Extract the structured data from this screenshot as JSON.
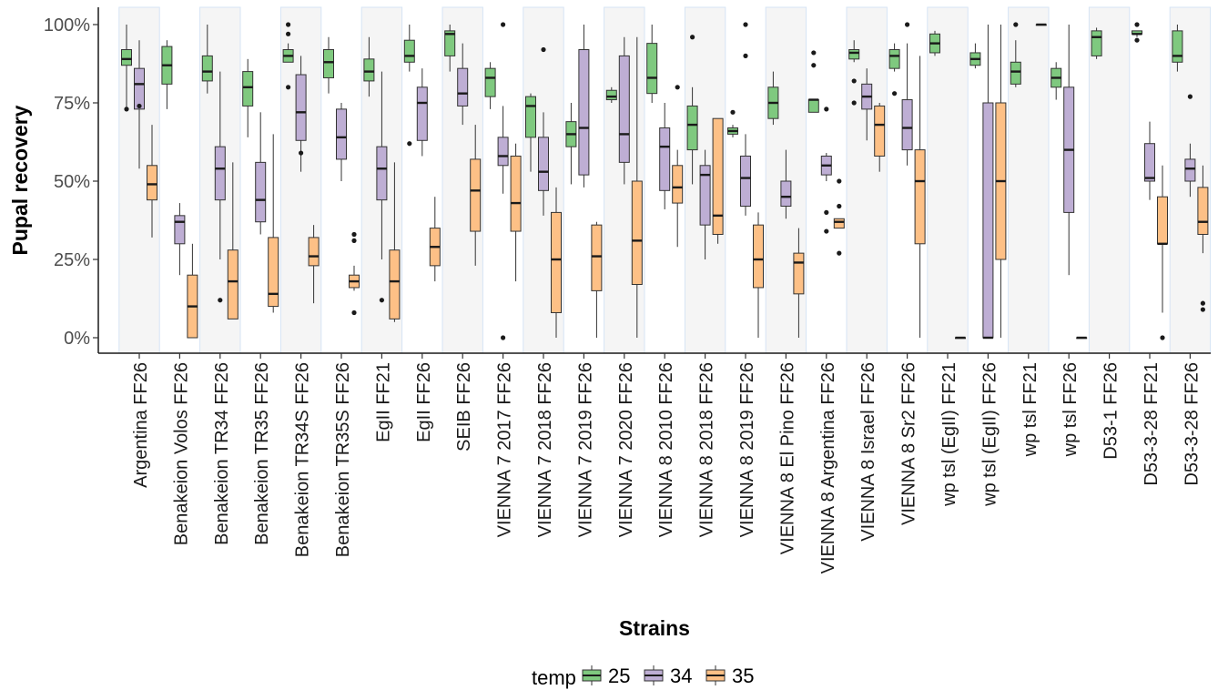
{
  "chart_data": {
    "type": "boxplot",
    "xlabel": "Strains",
    "ylabel": "Pupal recovery",
    "ylim": [
      0,
      1
    ],
    "y_ticks": [
      "0%",
      "25%",
      "50%",
      "75%",
      "100%"
    ],
    "grid": false,
    "legend": {
      "title": "temp",
      "placement": "bottom",
      "entries": [
        "25",
        "34",
        "35"
      ]
    },
    "colors": {
      "25": "#7fc97f",
      "34": "#beaed4",
      "35": "#fdc086",
      "stripe": "#f5f5f5",
      "stripe_border": "#d6e4f5"
    },
    "categories": [
      {
        "label": "Argentina FF26",
        "boxes": {
          "25": {
            "whislo": 0.73,
            "q1": 0.87,
            "med": 0.89,
            "q3": 0.92,
            "whishi": 1.0,
            "fliers": [
              0.73
            ]
          },
          "34": {
            "whislo": 0.54,
            "q1": 0.73,
            "med": 0.81,
            "q3": 0.86,
            "whishi": 0.95,
            "fliers": [
              0.74
            ]
          },
          "35": {
            "whislo": 0.32,
            "q1": 0.44,
            "med": 0.49,
            "q3": 0.55,
            "whishi": 0.68,
            "fliers": []
          }
        }
      },
      {
        "label": "Benakeion Volos FF26",
        "boxes": {
          "25": {
            "whislo": 0.73,
            "q1": 0.81,
            "med": 0.87,
            "q3": 0.93,
            "whishi": 0.95,
            "fliers": []
          },
          "34": {
            "whislo": 0.2,
            "q1": 0.3,
            "med": 0.37,
            "q3": 0.39,
            "whishi": 0.43,
            "fliers": []
          },
          "35": {
            "whislo": 0.0,
            "q1": 0.0,
            "med": 0.1,
            "q3": 0.2,
            "whishi": 0.3,
            "fliers": []
          }
        }
      },
      {
        "label": "Benakeion TR34 FF26",
        "boxes": {
          "25": {
            "whislo": 0.78,
            "q1": 0.82,
            "med": 0.85,
            "q3": 0.9,
            "whishi": 1.0,
            "fliers": []
          },
          "34": {
            "whislo": 0.25,
            "q1": 0.44,
            "med": 0.54,
            "q3": 0.61,
            "whishi": 0.85,
            "fliers": [
              0.12
            ]
          },
          "35": {
            "whislo": 0.06,
            "q1": 0.06,
            "med": 0.18,
            "q3": 0.28,
            "whishi": 0.56,
            "fliers": []
          }
        }
      },
      {
        "label": "Benakeion TR35 FF26",
        "boxes": {
          "25": {
            "whislo": 0.64,
            "q1": 0.74,
            "med": 0.8,
            "q3": 0.85,
            "whishi": 0.89,
            "fliers": []
          },
          "34": {
            "whislo": 0.33,
            "q1": 0.37,
            "med": 0.44,
            "q3": 0.56,
            "whishi": 0.72,
            "fliers": []
          },
          "35": {
            "whislo": 0.08,
            "q1": 0.1,
            "med": 0.14,
            "q3": 0.32,
            "whishi": 0.65,
            "fliers": []
          }
        }
      },
      {
        "label": "Benakeion TR34S FF26",
        "boxes": {
          "25": {
            "whislo": 0.88,
            "q1": 0.88,
            "med": 0.9,
            "q3": 0.92,
            "whishi": 0.94,
            "fliers": [
              0.8,
              0.97,
              1.0
            ]
          },
          "34": {
            "whislo": 0.53,
            "q1": 0.63,
            "med": 0.72,
            "q3": 0.84,
            "whishi": 0.9,
            "fliers": [
              0.59
            ]
          },
          "35": {
            "whislo": 0.11,
            "q1": 0.23,
            "med": 0.26,
            "q3": 0.32,
            "whishi": 0.36,
            "fliers": []
          }
        }
      },
      {
        "label": "Benakeion TR35S FF26",
        "boxes": {
          "25": {
            "whislo": 0.78,
            "q1": 0.83,
            "med": 0.88,
            "q3": 0.92,
            "whishi": 0.96,
            "fliers": []
          },
          "34": {
            "whislo": 0.5,
            "q1": 0.57,
            "med": 0.64,
            "q3": 0.73,
            "whishi": 0.75,
            "fliers": []
          },
          "35": {
            "whislo": 0.15,
            "q1": 0.16,
            "med": 0.18,
            "q3": 0.2,
            "whishi": 0.23,
            "fliers": [
              0.08,
              0.31,
              0.33
            ]
          }
        }
      },
      {
        "label": "EgII FF21",
        "boxes": {
          "25": {
            "whislo": 0.77,
            "q1": 0.82,
            "med": 0.85,
            "q3": 0.89,
            "whishi": 0.96,
            "fliers": []
          },
          "34": {
            "whislo": 0.25,
            "q1": 0.44,
            "med": 0.54,
            "q3": 0.61,
            "whishi": 0.85,
            "fliers": [
              0.12
            ]
          },
          "35": {
            "whislo": 0.05,
            "q1": 0.06,
            "med": 0.18,
            "q3": 0.28,
            "whishi": 0.56,
            "fliers": []
          }
        }
      },
      {
        "label": "EgII FF26",
        "boxes": {
          "25": {
            "whislo": 0.85,
            "q1": 0.88,
            "med": 0.9,
            "q3": 0.95,
            "whishi": 1.0,
            "fliers": [
              0.62
            ]
          },
          "34": {
            "whislo": 0.58,
            "q1": 0.63,
            "med": 0.75,
            "q3": 0.8,
            "whishi": 0.86,
            "fliers": []
          },
          "35": {
            "whislo": 0.18,
            "q1": 0.23,
            "med": 0.29,
            "q3": 0.35,
            "whishi": 0.45,
            "fliers": []
          }
        }
      },
      {
        "label": "SEIB FF26",
        "boxes": {
          "25": {
            "whislo": 0.85,
            "q1": 0.9,
            "med": 0.97,
            "q3": 0.98,
            "whishi": 1.0,
            "fliers": []
          },
          "34": {
            "whislo": 0.68,
            "q1": 0.74,
            "med": 0.78,
            "q3": 0.86,
            "whishi": 0.94,
            "fliers": []
          },
          "35": {
            "whislo": 0.23,
            "q1": 0.34,
            "med": 0.47,
            "q3": 0.57,
            "whishi": 0.68,
            "fliers": []
          }
        }
      },
      {
        "label": "VIENNA 7 2017 FF26",
        "boxes": {
          "25": {
            "whislo": 0.73,
            "q1": 0.77,
            "med": 0.83,
            "q3": 0.86,
            "whishi": 0.88,
            "fliers": []
          },
          "34": {
            "whislo": 0.46,
            "q1": 0.55,
            "med": 0.58,
            "q3": 0.64,
            "whishi": 0.74,
            "fliers": [
              0.0,
              1.0
            ]
          },
          "35": {
            "whislo": 0.18,
            "q1": 0.34,
            "med": 0.43,
            "q3": 0.58,
            "whishi": 0.62,
            "fliers": []
          }
        }
      },
      {
        "label": "VIENNA 7 2018 FF26",
        "boxes": {
          "25": {
            "whislo": 0.53,
            "q1": 0.64,
            "med": 0.74,
            "q3": 0.77,
            "whishi": 0.78,
            "fliers": []
          },
          "34": {
            "whislo": 0.39,
            "q1": 0.47,
            "med": 0.53,
            "q3": 0.64,
            "whishi": 0.72,
            "fliers": [
              0.92
            ]
          },
          "35": {
            "whislo": 0.0,
            "q1": 0.08,
            "med": 0.25,
            "q3": 0.4,
            "whishi": 0.48,
            "fliers": []
          }
        }
      },
      {
        "label": "VIENNA 7 2019 FF26",
        "boxes": {
          "25": {
            "whislo": 0.49,
            "q1": 0.61,
            "med": 0.65,
            "q3": 0.69,
            "whishi": 0.75,
            "fliers": []
          },
          "34": {
            "whislo": 0.48,
            "q1": 0.52,
            "med": 0.67,
            "q3": 0.92,
            "whishi": 1.0,
            "fliers": []
          },
          "35": {
            "whislo": 0.0,
            "q1": 0.15,
            "med": 0.26,
            "q3": 0.36,
            "whishi": 0.37,
            "fliers": []
          }
        }
      },
      {
        "label": "VIENNA 7 2020 FF26",
        "boxes": {
          "25": {
            "whislo": 0.75,
            "q1": 0.76,
            "med": 0.77,
            "q3": 0.79,
            "whishi": 0.8,
            "fliers": []
          },
          "34": {
            "whislo": 0.49,
            "q1": 0.56,
            "med": 0.65,
            "q3": 0.9,
            "whishi": 0.96,
            "fliers": []
          },
          "35": {
            "whislo": 0.0,
            "q1": 0.17,
            "med": 0.31,
            "q3": 0.5,
            "whishi": 0.96,
            "fliers": []
          }
        }
      },
      {
        "label": "VIENNA 8 2010 FF26",
        "boxes": {
          "25": {
            "whislo": 0.75,
            "q1": 0.78,
            "med": 0.83,
            "q3": 0.94,
            "whishi": 1.0,
            "fliers": []
          },
          "34": {
            "whislo": 0.41,
            "q1": 0.47,
            "med": 0.61,
            "q3": 0.67,
            "whishi": 0.75,
            "fliers": []
          },
          "35": {
            "whislo": 0.29,
            "q1": 0.43,
            "med": 0.48,
            "q3": 0.55,
            "whishi": 0.6,
            "fliers": [
              0.8
            ]
          }
        }
      },
      {
        "label": "VIENNA 8 2018 FF26",
        "boxes": {
          "25": {
            "whislo": 0.49,
            "q1": 0.6,
            "med": 0.68,
            "q3": 0.74,
            "whishi": 0.8,
            "fliers": [
              0.96
            ]
          },
          "34": {
            "whislo": 0.25,
            "q1": 0.36,
            "med": 0.52,
            "q3": 0.55,
            "whishi": 0.6,
            "fliers": []
          },
          "35": {
            "whislo": 0.3,
            "q1": 0.33,
            "med": 0.39,
            "q3": 0.7,
            "whishi": 0.7,
            "fliers": []
          }
        }
      },
      {
        "label": "VIENNA 8 2019 FF26",
        "boxes": {
          "25": {
            "whislo": 0.64,
            "q1": 0.65,
            "med": 0.66,
            "q3": 0.67,
            "whishi": 0.68,
            "fliers": [
              0.72
            ]
          },
          "34": {
            "whislo": 0.39,
            "q1": 0.42,
            "med": 0.51,
            "q3": 0.58,
            "whishi": 0.65,
            "fliers": [
              0.9,
              1.0
            ]
          },
          "35": {
            "whislo": 0.0,
            "q1": 0.16,
            "med": 0.25,
            "q3": 0.36,
            "whishi": 0.4,
            "fliers": []
          }
        }
      },
      {
        "label": "VIENNA 8 El Pino FF26",
        "boxes": {
          "25": {
            "whislo": 0.68,
            "q1": 0.7,
            "med": 0.75,
            "q3": 0.8,
            "whishi": 0.85,
            "fliers": []
          },
          "34": {
            "whislo": 0.38,
            "q1": 0.42,
            "med": 0.45,
            "q3": 0.5,
            "whishi": 0.6,
            "fliers": []
          },
          "35": {
            "whislo": 0.0,
            "q1": 0.14,
            "med": 0.24,
            "q3": 0.27,
            "whishi": 0.35,
            "fliers": []
          }
        }
      },
      {
        "label": "VIENNA 8 Argentina FF26",
        "boxes": {
          "25": {
            "whislo": 0.72,
            "q1": 0.72,
            "med": 0.76,
            "q3": 0.76,
            "whishi": 0.76,
            "fliers": [
              0.87,
              0.91
            ]
          },
          "34": {
            "whislo": 0.5,
            "q1": 0.52,
            "med": 0.55,
            "q3": 0.58,
            "whishi": 0.59,
            "fliers": [
              0.73,
              0.34,
              0.4
            ]
          },
          "35": {
            "whislo": 0.35,
            "q1": 0.35,
            "med": 0.37,
            "q3": 0.38,
            "whishi": 0.38,
            "fliers": [
              0.27,
              0.42,
              0.5
            ]
          }
        }
      },
      {
        "label": "VIENNA 8 Israel FF26",
        "boxes": {
          "25": {
            "whislo": 0.88,
            "q1": 0.89,
            "med": 0.91,
            "q3": 0.92,
            "whishi": 0.95,
            "fliers": [
              0.75,
              0.82
            ]
          },
          "34": {
            "whislo": 0.63,
            "q1": 0.73,
            "med": 0.77,
            "q3": 0.81,
            "whishi": 0.86,
            "fliers": []
          },
          "35": {
            "whislo": 0.53,
            "q1": 0.58,
            "med": 0.68,
            "q3": 0.74,
            "whishi": 0.75,
            "fliers": []
          }
        }
      },
      {
        "label": "VIENNA 8 Sr2 FF26",
        "boxes": {
          "25": {
            "whislo": 0.85,
            "q1": 0.86,
            "med": 0.9,
            "q3": 0.92,
            "whishi": 0.94,
            "fliers": [
              0.78
            ]
          },
          "34": {
            "whislo": 0.55,
            "q1": 0.6,
            "med": 0.67,
            "q3": 0.76,
            "whishi": 0.94,
            "fliers": [
              1.0
            ]
          },
          "35": {
            "whislo": 0.0,
            "q1": 0.3,
            "med": 0.5,
            "q3": 0.6,
            "whishi": 0.9,
            "fliers": []
          }
        }
      },
      {
        "label": "wp tsl (EgII) FF21",
        "boxes": {
          "25": {
            "whislo": 0.9,
            "q1": 0.91,
            "med": 0.94,
            "q3": 0.97,
            "whishi": 0.98,
            "fliers": []
          },
          "34": null,
          "35": {
            "whislo": 0.0,
            "q1": 0.0,
            "med": 0.0,
            "q3": 0.0,
            "whishi": 0.0,
            "fliers": []
          }
        }
      },
      {
        "label": "wp tsl (EgII) FF26",
        "boxes": {
          "25": {
            "whislo": 0.86,
            "q1": 0.87,
            "med": 0.89,
            "q3": 0.91,
            "whishi": 0.94,
            "fliers": []
          },
          "34": {
            "whislo": 0.0,
            "q1": 0.0,
            "med": 0.0,
            "q3": 0.75,
            "whishi": 1.0,
            "fliers": []
          },
          "35": {
            "whislo": 0.0,
            "q1": 0.25,
            "med": 0.5,
            "q3": 0.75,
            "whishi": 1.0,
            "fliers": []
          }
        }
      },
      {
        "label": "wp tsl FF21",
        "boxes": {
          "25": {
            "whislo": 0.8,
            "q1": 0.81,
            "med": 0.85,
            "q3": 0.88,
            "whishi": 0.95,
            "fliers": [
              1.0
            ]
          },
          "34": null,
          "35": {
            "whislo": 1.0,
            "q1": 1.0,
            "med": 1.0,
            "q3": 1.0,
            "whishi": 1.0,
            "fliers": []
          }
        }
      },
      {
        "label": "wp tsl FF26",
        "boxes": {
          "25": {
            "whislo": 0.76,
            "q1": 0.8,
            "med": 0.83,
            "q3": 0.86,
            "whishi": 0.88,
            "fliers": []
          },
          "34": {
            "whislo": 0.2,
            "q1": 0.4,
            "med": 0.6,
            "q3": 0.8,
            "whishi": 1.0,
            "fliers": []
          },
          "35": {
            "whislo": 0.0,
            "q1": 0.0,
            "med": 0.0,
            "q3": 0.0,
            "whishi": 0.0,
            "fliers": []
          }
        }
      },
      {
        "label": "D53-1 FF26",
        "boxes": {
          "25": {
            "whislo": 0.89,
            "q1": 0.9,
            "med": 0.96,
            "q3": 0.98,
            "whishi": 0.99,
            "fliers": []
          },
          "34": null,
          "35": null
        }
      },
      {
        "label": "D53-3-28 FF21",
        "boxes": {
          "25": {
            "whislo": 0.96,
            "q1": 0.97,
            "med": 0.97,
            "q3": 0.98,
            "whishi": 0.98,
            "fliers": [
              0.95,
              1.0
            ]
          },
          "34": {
            "whislo": 0.44,
            "q1": 0.5,
            "med": 0.51,
            "q3": 0.62,
            "whishi": 0.69,
            "fliers": []
          },
          "35": {
            "whislo": 0.08,
            "q1": 0.3,
            "med": 0.3,
            "q3": 0.45,
            "whishi": 0.55,
            "fliers": [
              0.0
            ]
          }
        }
      },
      {
        "label": "D53-3-28 FF26",
        "boxes": {
          "25": {
            "whislo": 0.85,
            "q1": 0.88,
            "med": 0.9,
            "q3": 0.98,
            "whishi": 1.0,
            "fliers": []
          },
          "34": {
            "whislo": 0.45,
            "q1": 0.5,
            "med": 0.54,
            "q3": 0.57,
            "whishi": 0.62,
            "fliers": [
              0.77
            ]
          },
          "35": {
            "whislo": 0.27,
            "q1": 0.33,
            "med": 0.37,
            "q3": 0.48,
            "whishi": 0.55,
            "fliers": [
              0.09,
              0.11
            ]
          }
        }
      }
    ]
  }
}
